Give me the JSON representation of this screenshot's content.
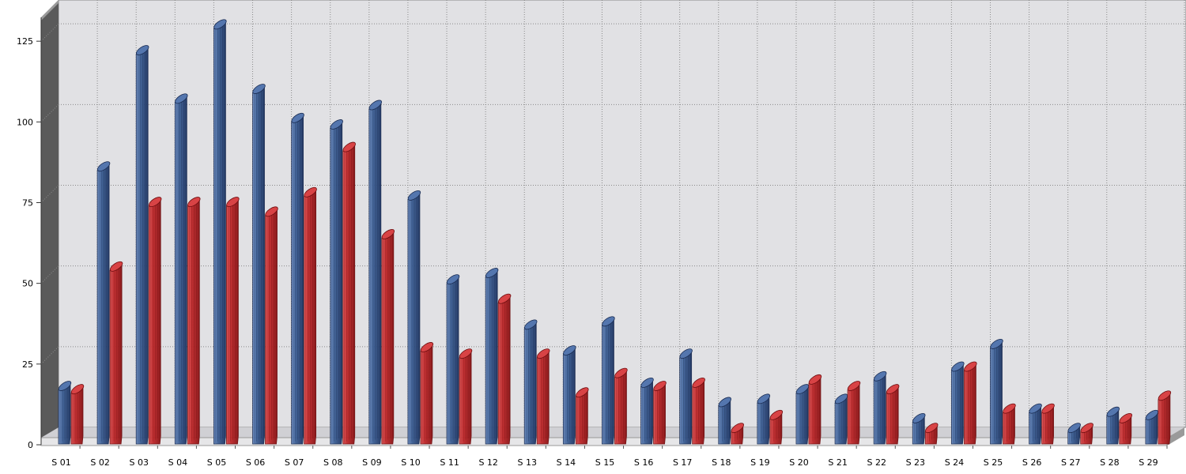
{
  "chart_data": {
    "type": "bar",
    "style": "3d-cylinder",
    "grid": true,
    "legend": "none",
    "ylim": [
      0,
      137
    ],
    "yticks": [
      0,
      25,
      50,
      75,
      100,
      125
    ],
    "categories": [
      "S 01",
      "S 02",
      "S 03",
      "S 04",
      "S 05",
      "S 06",
      "S 07",
      "S 08",
      "S 09",
      "S 10",
      "S 11",
      "S 12",
      "S 13",
      "S 14",
      "S 15",
      "S 16",
      "S 17",
      "S 18",
      "S 19",
      "S 20",
      "S 21",
      "S 22",
      "S 23",
      "S 24",
      "S 25",
      "S 26",
      "S 27",
      "S 28",
      "S 29"
    ],
    "series": [
      {
        "color": "#3C5F95",
        "values": [
          17,
          85,
          121,
          106,
          129,
          109,
          100,
          98,
          104,
          76,
          50,
          52,
          36,
          28,
          37,
          18,
          27,
          12,
          13,
          16,
          13,
          20,
          7,
          23,
          30,
          10,
          4,
          9,
          8
        ]
      },
      {
        "color": "#C0282A",
        "values": [
          16,
          54,
          74,
          74,
          74,
          71,
          77,
          91,
          64,
          29,
          27,
          44,
          27,
          15,
          21,
          17,
          18,
          4,
          8,
          19,
          17,
          16,
          4,
          23,
          10,
          10,
          4,
          7,
          14
        ]
      }
    ]
  }
}
